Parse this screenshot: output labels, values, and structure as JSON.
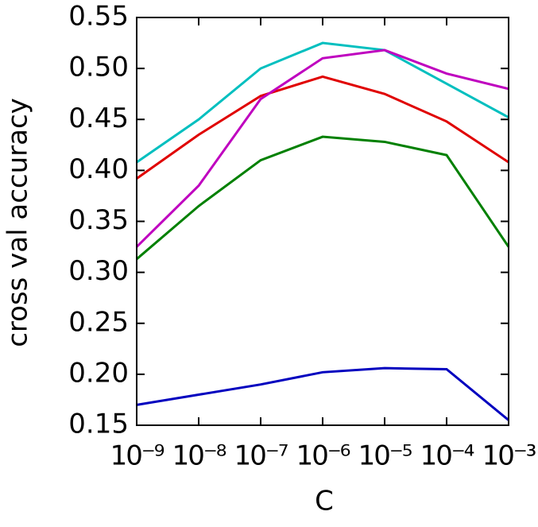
{
  "chart_data": {
    "type": "line",
    "xlabel": "C",
    "ylabel": "cross val accuracy",
    "xscale": "log",
    "x": [
      1e-09,
      1e-08,
      1e-07,
      1e-06,
      1e-05,
      0.0001,
      0.001
    ],
    "series": [
      {
        "color": "#0000bf",
        "values": [
          0.17,
          0.18,
          0.19,
          0.202,
          0.206,
          0.205,
          0.155
        ]
      },
      {
        "color": "#008000",
        "values": [
          0.313,
          0.365,
          0.41,
          0.433,
          0.428,
          0.415,
          0.325
        ]
      },
      {
        "color": "#e00000",
        "values": [
          0.392,
          0.435,
          0.473,
          0.492,
          0.475,
          0.448,
          0.408
        ]
      },
      {
        "color": "#00bfbf",
        "values": [
          0.408,
          0.45,
          0.5,
          0.525,
          0.518,
          0.485,
          0.452
        ]
      },
      {
        "color": "#bf00bf",
        "values": [
          0.325,
          0.385,
          0.47,
          0.51,
          0.518,
          0.495,
          0.48
        ]
      }
    ],
    "xlim": [
      1e-09,
      0.001
    ],
    "xticks": [
      {
        "value": 1e-09,
        "label": "10⁻⁹"
      },
      {
        "value": 1e-08,
        "label": "10⁻⁸"
      },
      {
        "value": 1e-07,
        "label": "10⁻⁷"
      },
      {
        "value": 1e-06,
        "label": "10⁻⁶"
      },
      {
        "value": 1e-05,
        "label": "10⁻⁵"
      },
      {
        "value": 0.0001,
        "label": "10⁻⁴"
      },
      {
        "value": 0.001,
        "label": "10⁻³"
      }
    ],
    "ylim": [
      0.15,
      0.55
    ],
    "yticks": [
      0.15,
      {
        "value": 0.2,
        "label": "0.20"
      },
      0.25,
      {
        "value": 0.3,
        "label": "0.30"
      },
      0.35,
      {
        "value": 0.4,
        "label": "0.40"
      },
      0.45,
      {
        "value": 0.5,
        "label": "0.50"
      },
      0.55
    ]
  }
}
